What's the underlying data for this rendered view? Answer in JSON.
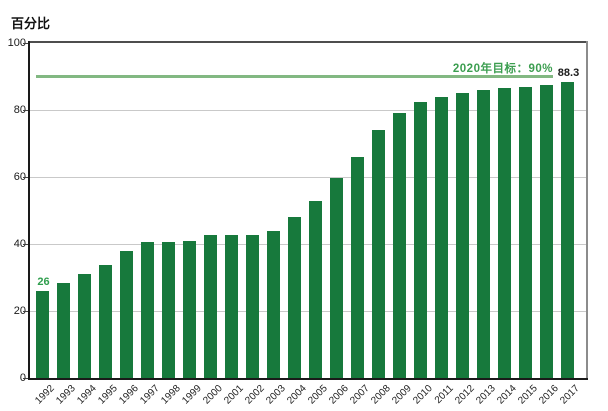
{
  "chart_data": {
    "type": "bar",
    "title": "百分比",
    "categories": [
      "1992",
      "1993",
      "1994",
      "1995",
      "1996",
      "1997",
      "1998",
      "1999",
      "2000",
      "2001",
      "2002",
      "2003",
      "2004",
      "2005",
      "2006",
      "2007",
      "2008",
      "2009",
      "2010",
      "2011",
      "2012",
      "2013",
      "2014",
      "2015",
      "2016",
      "2017"
    ],
    "values": [
      26,
      28.4,
      31,
      33.6,
      38,
      40.6,
      40.7,
      41,
      42.8,
      42.8,
      42.8,
      43.8,
      48.1,
      52.7,
      59.8,
      66,
      74,
      79.2,
      82.5,
      84,
      85,
      86,
      86.5,
      87,
      87.5,
      88.3
    ],
    "xlabel": "",
    "ylabel": "百分比",
    "ylim": [
      0,
      100
    ],
    "yticks": [
      0,
      20,
      40,
      60,
      80,
      100
    ],
    "grid": true,
    "legend": "none",
    "bar_color": "#17793c",
    "axis_text_color": "#1a1a1a",
    "gridline_color": "#c9c9c9",
    "target_line": {
      "value": 90,
      "label": "2020年目标：90%",
      "line_color": "#82b882",
      "label_color": "#3c9e50"
    },
    "data_labels": [
      {
        "index": 0,
        "text": "26",
        "color": "#2f9e4d"
      },
      {
        "index": 25,
        "text": "88.3",
        "color": "#1a1a1a"
      }
    ]
  }
}
